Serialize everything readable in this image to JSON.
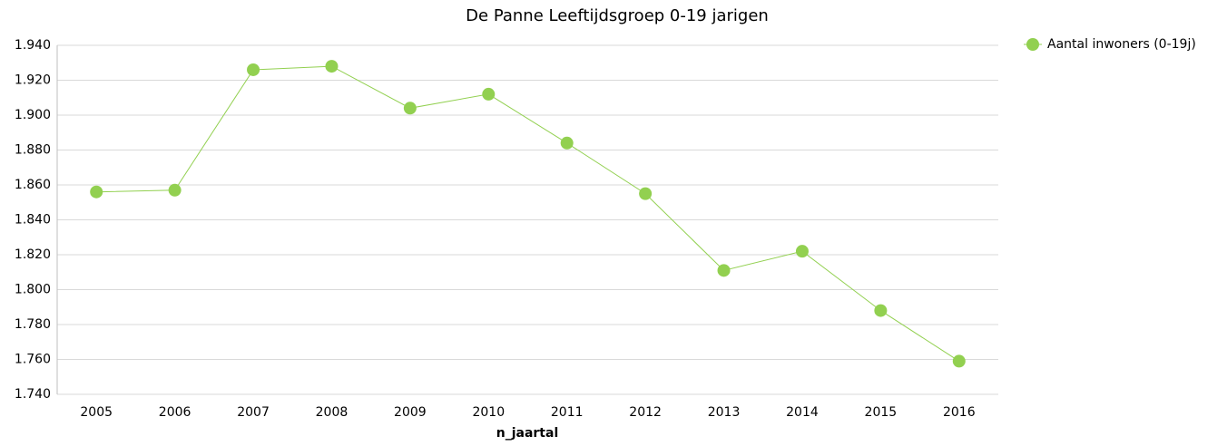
{
  "chart_data": {
    "type": "line",
    "title": "De Panne  Leeftijdsgroep 0-19 jarigen",
    "x_label": "n_jaartal",
    "categories": [
      "2005",
      "2006",
      "2007",
      "2008",
      "2009",
      "2010",
      "2011",
      "2012",
      "2013",
      "2014",
      "2015",
      "2016"
    ],
    "series": [
      {
        "name": "Aantal inwoners (0-19j)",
        "color": "#92d050",
        "values": [
          1856,
          1857,
          1926,
          1928,
          1904,
          1912,
          1884,
          1855,
          1811,
          1822,
          1788,
          1759
        ]
      }
    ],
    "ylim": [
      1740,
      1940
    ],
    "yticks": [
      {
        "value": 1740,
        "label": "1.740"
      },
      {
        "value": 1760,
        "label": "1.760"
      },
      {
        "value": 1780,
        "label": "1.780"
      },
      {
        "value": 1800,
        "label": "1.800"
      },
      {
        "value": 1820,
        "label": "1.820"
      },
      {
        "value": 1840,
        "label": "1.840"
      },
      {
        "value": 1860,
        "label": "1.860"
      },
      {
        "value": 1880,
        "label": "1.880"
      },
      {
        "value": 1900,
        "label": "1.900"
      },
      {
        "value": 1920,
        "label": "1.920"
      },
      {
        "value": 1940,
        "label": "1.940"
      }
    ],
    "grid": true,
    "legend": "right"
  }
}
